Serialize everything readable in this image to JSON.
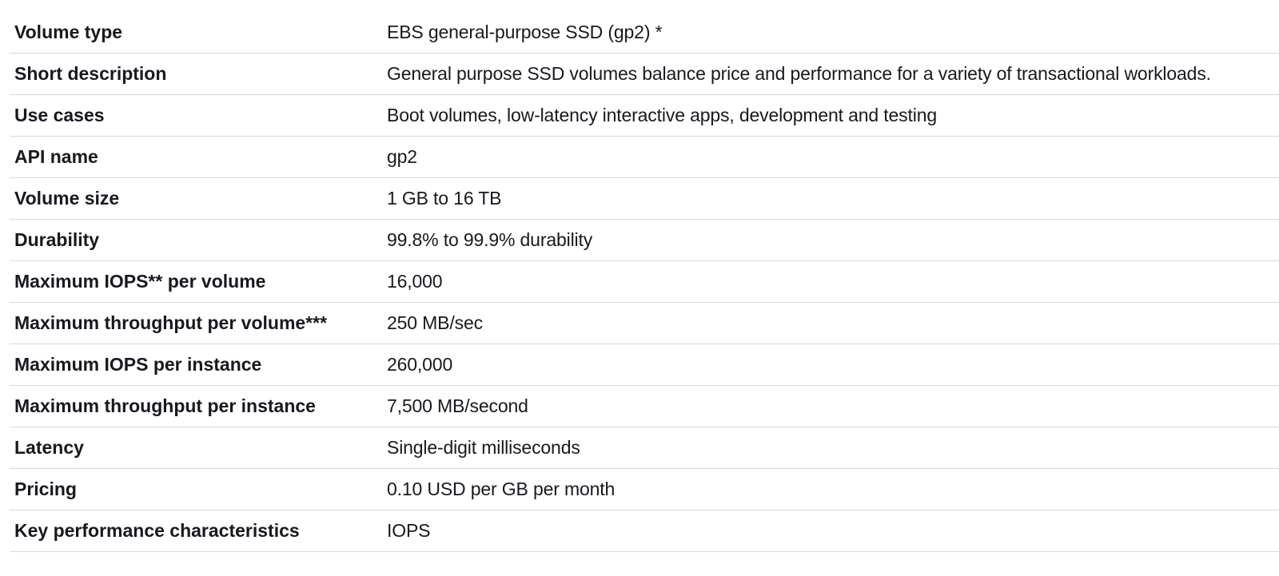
{
  "rows": [
    {
      "label": "Volume type",
      "value": "EBS general-purpose SSD (gp2) *"
    },
    {
      "label": "Short description",
      "value": "General purpose SSD volumes balance price and performance for a variety of transactional workloads."
    },
    {
      "label": "Use cases",
      "value": "Boot volumes, low-latency interactive apps, development and testing"
    },
    {
      "label": "API name",
      "value": "gp2"
    },
    {
      "label": "Volume size",
      "value": "1 GB to 16 TB"
    },
    {
      "label": "Durability",
      "value": "99.8% to 99.9% durability"
    },
    {
      "label": "Maximum IOPS** per volume",
      "value": "16,000"
    },
    {
      "label": "Maximum throughput per volume***",
      "value": "250 MB/sec"
    },
    {
      "label": "Maximum IOPS per instance",
      "value": "260,000"
    },
    {
      "label": "Maximum throughput per instance",
      "value": "7,500 MB/second"
    },
    {
      "label": "Latency",
      "value": "Single-digit milliseconds"
    },
    {
      "label": "Pricing",
      "value": "0.10 USD per GB per month"
    },
    {
      "label": "Key performance characteristics",
      "value": "IOPS"
    }
  ]
}
